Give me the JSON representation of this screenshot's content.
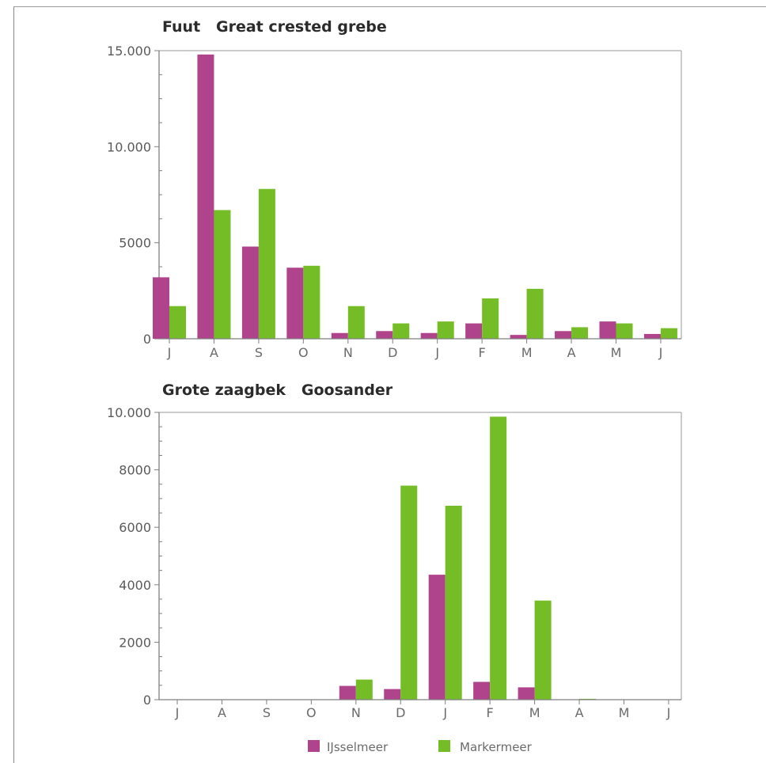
{
  "colors": {
    "ijsselmeer": "#b0448c",
    "markermeer": "#74bd26",
    "axis": "#7f7f7f",
    "frame": "#9a9a9a"
  },
  "legend": [
    {
      "name": "IJsselmeer",
      "color": "#b0448c"
    },
    {
      "name": "Markermeer",
      "color": "#74bd26"
    }
  ],
  "chart_data": [
    {
      "type": "bar",
      "title": "Fuut   Great crested grebe",
      "categories": [
        "J",
        "A",
        "S",
        "O",
        "N",
        "D",
        "J",
        "F",
        "M",
        "A",
        "M",
        "J"
      ],
      "series": [
        {
          "name": "IJsselmeer",
          "values": [
            3200,
            14800,
            4800,
            3700,
            300,
            400,
            300,
            800,
            200,
            400,
            900,
            250
          ]
        },
        {
          "name": "Markermeer",
          "values": [
            1700,
            6700,
            7800,
            3800,
            1700,
            800,
            900,
            2100,
            2600,
            600,
            800,
            550
          ]
        }
      ],
      "ylim": [
        0,
        15000
      ],
      "yticks": [
        0,
        5000,
        10000,
        15000
      ],
      "ytick_labels": [
        "0",
        "5000",
        "10.000",
        "15.000"
      ],
      "xlabel": "",
      "ylabel": ""
    },
    {
      "type": "bar",
      "title": "Grote zaagbek   Goosander",
      "categories": [
        "J",
        "A",
        "S",
        "O",
        "N",
        "D",
        "J",
        "F",
        "M",
        "A",
        "M",
        "J"
      ],
      "series": [
        {
          "name": "IJsselmeer",
          "values": [
            0,
            0,
            0,
            0,
            480,
            370,
            4350,
            620,
            430,
            0,
            0,
            0
          ]
        },
        {
          "name": "Markermeer",
          "values": [
            0,
            0,
            0,
            0,
            700,
            7450,
            6750,
            9850,
            3450,
            30,
            0,
            0
          ]
        }
      ],
      "ylim": [
        0,
        10000
      ],
      "yticks": [
        0,
        2000,
        4000,
        6000,
        8000,
        10000
      ],
      "ytick_labels": [
        "0",
        "2000",
        "4000",
        "6000",
        "8000",
        "10.000"
      ],
      "xlabel": "",
      "ylabel": ""
    }
  ]
}
